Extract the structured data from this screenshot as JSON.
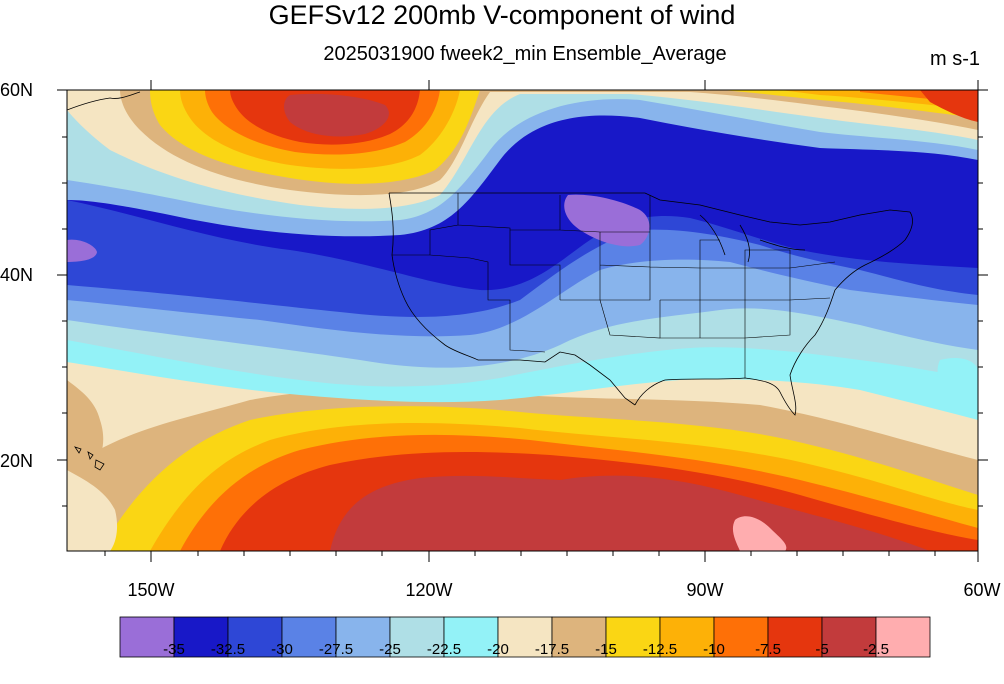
{
  "title": "GEFSv12 200mb V-component of wind",
  "subtitle": "2025031900 fweek2_min Ensemble_Average",
  "units": "m s-1",
  "lat_labels": [
    "60N",
    "40N",
    "20N"
  ],
  "lon_labels": [
    "150W",
    "120W",
    "90W",
    "60W"
  ],
  "colorbar": {
    "colors": [
      "#9a6ed8",
      "#1818c8",
      "#2e47d6",
      "#5a82e6",
      "#88b4ec",
      "#afdfe6",
      "#93f2f7",
      "#f5e5c2",
      "#ddb47d",
      "#fad614",
      "#fdb107",
      "#fe7007",
      "#e5360e",
      "#c23b3c",
      "#ffadaf"
    ],
    "labels": [
      "-35",
      "-32.5",
      "-30",
      "-27.5",
      "-25",
      "-22.5",
      "-20",
      "-17.5",
      "-15",
      "-12.5",
      "-10",
      "-7.5",
      "-5",
      "-2.5"
    ]
  },
  "map": {
    "lon_range": [
      -160,
      -60
    ],
    "lat_range": [
      10,
      60
    ]
  }
}
